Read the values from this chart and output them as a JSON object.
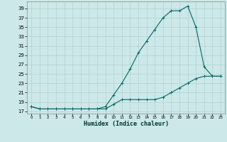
{
  "xlabel": "Humidex (Indice chaleur)",
  "bg_color": "#cce8e8",
  "grid_color": "#aacccc",
  "line_color": "#006666",
  "x_upper": [
    0,
    1,
    2,
    3,
    4,
    5,
    6,
    7,
    8,
    9,
    10,
    11,
    12,
    13,
    14,
    15,
    16,
    17,
    18,
    19,
    20,
    21,
    22,
    23
  ],
  "y_upper": [
    18,
    17.5,
    17.5,
    17.5,
    17.5,
    17.5,
    17.5,
    17.5,
    17.5,
    18.0,
    20.5,
    23.0,
    26.0,
    29.5,
    32.0,
    34.5,
    37.0,
    38.5,
    38.5,
    39.5,
    35.0,
    26.5,
    24.5,
    24.5
  ],
  "x_lower": [
    0,
    1,
    2,
    3,
    4,
    5,
    6,
    7,
    8,
    9,
    10,
    11,
    12,
    13,
    14,
    15,
    16,
    17,
    18,
    19,
    20,
    21,
    22,
    23
  ],
  "y_lower": [
    18,
    17.5,
    17.5,
    17.5,
    17.5,
    17.5,
    17.5,
    17.5,
    17.5,
    17.5,
    18.5,
    19.5,
    19.5,
    19.5,
    19.5,
    19.5,
    20.0,
    21.0,
    22.0,
    23.0,
    24.0,
    24.5,
    24.5,
    24.5
  ],
  "ylim": [
    16.5,
    40.5
  ],
  "xlim": [
    -0.5,
    23.5
  ],
  "yticks": [
    17,
    19,
    21,
    23,
    25,
    27,
    29,
    31,
    33,
    35,
    37,
    39
  ],
  "xticks": [
    0,
    1,
    2,
    3,
    4,
    5,
    6,
    7,
    8,
    9,
    10,
    11,
    12,
    13,
    14,
    15,
    16,
    17,
    18,
    19,
    20,
    21,
    22,
    23
  ]
}
